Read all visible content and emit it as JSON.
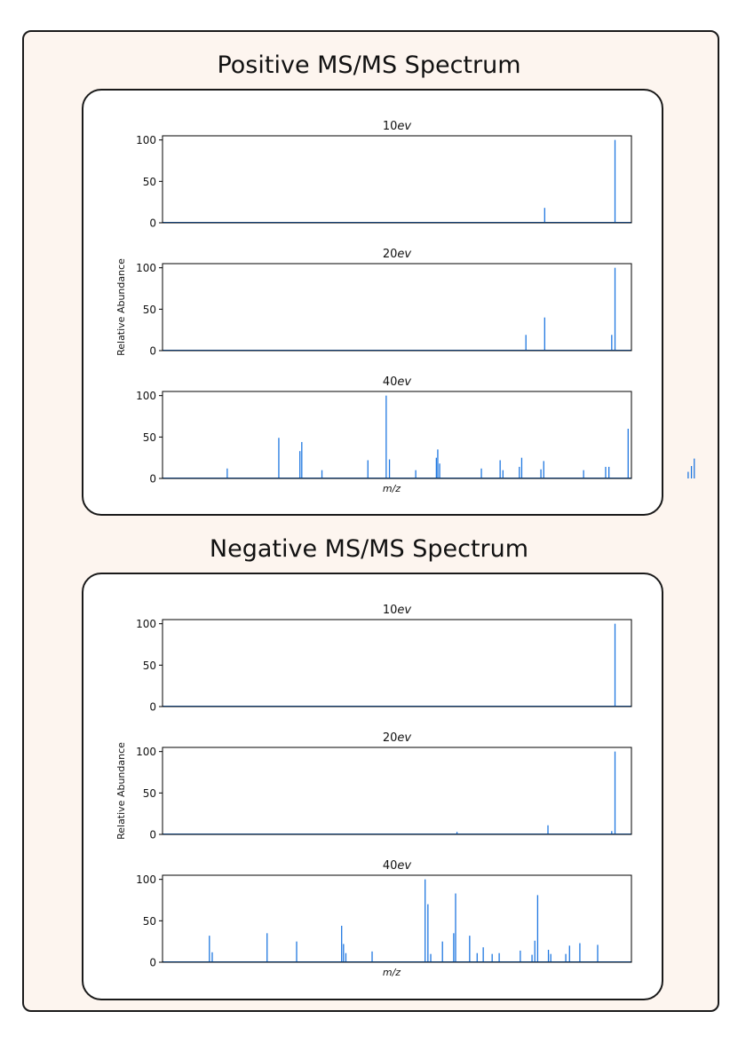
{
  "sections": [
    {
      "title": "Positive MS/MS Spectrum",
      "ylabel": "Relative Abundance",
      "xlabel": "m/z",
      "charts": [
        {
          "energy": "10",
          "unit": "ev",
          "ylim": [
            0,
            105
          ],
          "yticks": [
            0,
            50,
            100
          ],
          "peaks": [
            [
              0.815,
              18
            ],
            [
              0.965,
              100
            ]
          ]
        },
        {
          "energy": "20",
          "unit": "ev",
          "ylim": [
            0,
            105
          ],
          "yticks": [
            0,
            50,
            100
          ],
          "peaks": [
            [
              0.775,
              19
            ],
            [
              0.815,
              40
            ],
            [
              0.958,
              19
            ],
            [
              0.965,
              100
            ]
          ]
        },
        {
          "energy": "40",
          "unit": "ev",
          "ylim": [
            0,
            105
          ],
          "yticks": [
            0,
            50,
            100
          ],
          "peaks": [
            [
              0.138,
              12
            ],
            [
              0.248,
              49
            ],
            [
              0.293,
              33
            ],
            [
              0.297,
              44
            ],
            [
              0.34,
              10
            ],
            [
              0.438,
              22
            ],
            [
              0.477,
              100
            ],
            [
              0.484,
              23
            ],
            [
              0.54,
              10
            ],
            [
              0.584,
              25
            ],
            [
              0.587,
              35
            ],
            [
              0.591,
              18
            ],
            [
              0.68,
              12
            ],
            [
              0.72,
              22
            ],
            [
              0.726,
              10
            ],
            [
              0.761,
              14
            ],
            [
              0.766,
              25
            ],
            [
              0.807,
              11
            ],
            [
              0.813,
              21
            ],
            [
              0.898,
              10
            ],
            [
              0.945,
              14
            ],
            [
              0.952,
              14
            ],
            [
              0.993,
              60
            ],
            [
              1.121,
              8
            ],
            [
              1.128,
              15
            ],
            [
              1.134,
              24
            ]
          ]
        }
      ]
    },
    {
      "title": "Negative MS/MS Spectrum",
      "ylabel": "Relative Abundance",
      "xlabel": "m/z",
      "charts": [
        {
          "energy": "10",
          "unit": "ev",
          "ylim": [
            0,
            105
          ],
          "yticks": [
            0,
            50,
            100
          ],
          "peaks": [
            [
              0.965,
              100
            ]
          ]
        },
        {
          "energy": "20",
          "unit": "ev",
          "ylim": [
            0,
            105
          ],
          "yticks": [
            0,
            50,
            100
          ],
          "peaks": [
            [
              0.628,
              3
            ],
            [
              0.822,
              11
            ],
            [
              0.958,
              4
            ],
            [
              0.965,
              100
            ]
          ]
        },
        {
          "energy": "40",
          "unit": "ev",
          "ylim": [
            0,
            105
          ],
          "yticks": [
            0,
            50,
            100
          ],
          "peaks": [
            [
              0.1,
              32
            ],
            [
              0.106,
              12
            ],
            [
              0.223,
              35
            ],
            [
              0.286,
              25
            ],
            [
              0.382,
              44
            ],
            [
              0.386,
              22
            ],
            [
              0.391,
              11
            ],
            [
              0.447,
              13
            ],
            [
              0.56,
              100
            ],
            [
              0.566,
              70
            ],
            [
              0.572,
              10
            ],
            [
              0.597,
              25
            ],
            [
              0.621,
              35
            ],
            [
              0.625,
              83
            ],
            [
              0.655,
              32
            ],
            [
              0.671,
              11
            ],
            [
              0.684,
              18
            ],
            [
              0.703,
              10
            ],
            [
              0.718,
              11
            ],
            [
              0.763,
              14
            ],
            [
              0.788,
              9
            ],
            [
              0.794,
              26
            ],
            [
              0.8,
              81
            ],
            [
              0.823,
              15
            ],
            [
              0.828,
              10
            ],
            [
              0.86,
              10
            ],
            [
              0.868,
              20
            ],
            [
              0.89,
              23
            ],
            [
              0.928,
              21
            ]
          ]
        }
      ]
    }
  ],
  "colors": {
    "peak": "#1f77e0",
    "axis": "#000000"
  }
}
